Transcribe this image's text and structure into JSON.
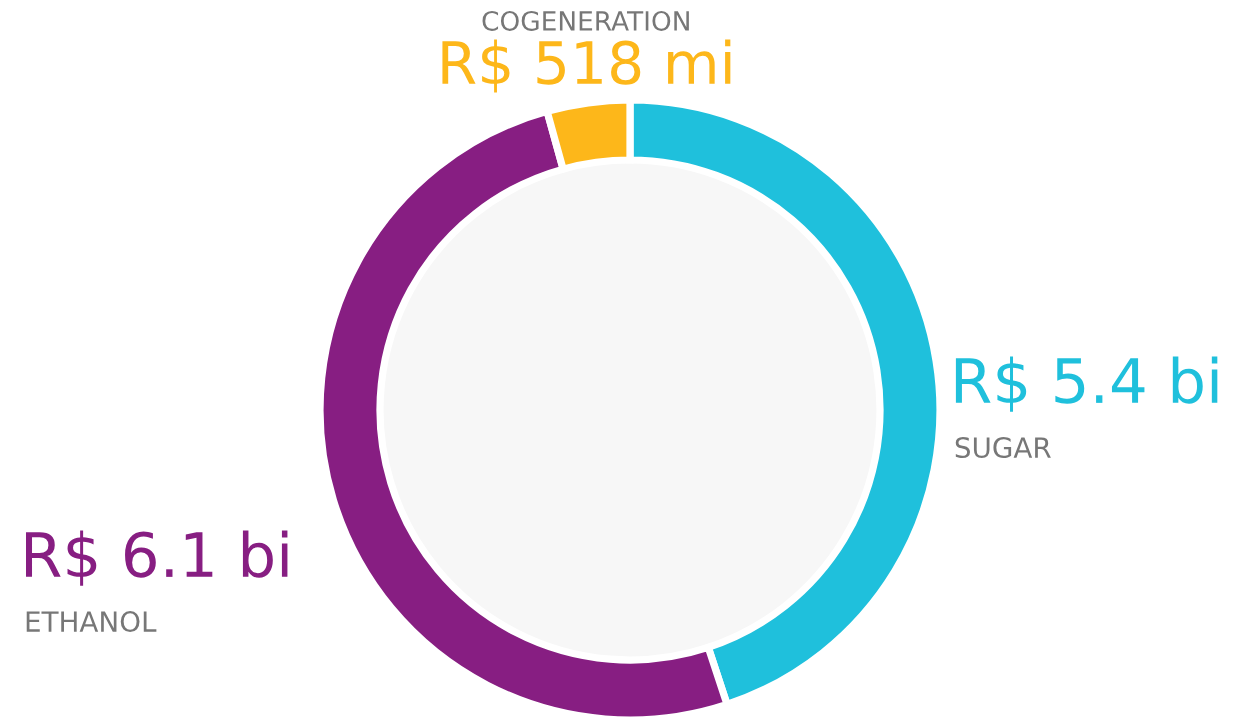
{
  "chart_data": {
    "type": "donut",
    "categories": [
      "SUGAR",
      "ETHANOL",
      "COGENERATION"
    ],
    "values": [
      5.4,
      6.1,
      0.518
    ],
    "value_labels": [
      "R$ 5.4 bi",
      "R$ 6.1 bi",
      "R$ 518 mi"
    ],
    "colors": [
      "#1fc0dc",
      "#871e82",
      "#fdb71a"
    ],
    "legend": false
  }
}
